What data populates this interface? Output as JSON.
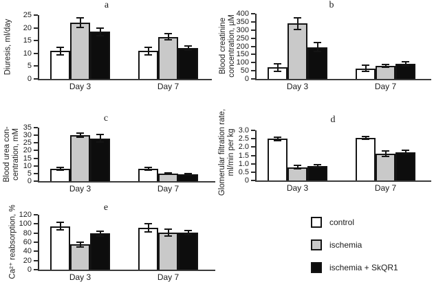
{
  "figure": {
    "ink_color": "#1a1a1a",
    "legend": {
      "items": [
        {
          "name": "control",
          "label": "control",
          "color": "#ffffff"
        },
        {
          "name": "ischemia",
          "label": "ischemia",
          "color": "#c9c9c9"
        },
        {
          "name": "ischemia-skqr1",
          "label": "ischemia + SkQR1",
          "color": "#0d0d0d"
        }
      ]
    }
  },
  "chart_data": [
    {
      "id": "a",
      "type": "bar",
      "title": "a",
      "ylabel": "Diuresis, ml/day",
      "categories": [
        "Day 3",
        "Day 7"
      ],
      "ylim": [
        0,
        25
      ],
      "ytick_labels": [
        "0",
        "5",
        "10",
        "15",
        "20",
        "25"
      ],
      "grid": false,
      "series": [
        {
          "name": "control",
          "color": "#ffffff",
          "values": [
            11,
            11
          ],
          "errors": [
            1.5,
            1.5
          ]
        },
        {
          "name": "ischemia",
          "color": "#c9c9c9",
          "values": [
            22,
            16.5
          ],
          "errors": [
            1.8,
            1.3
          ]
        },
        {
          "name": "ischemia + SkQR1",
          "color": "#0d0d0d",
          "values": [
            18.5,
            12
          ],
          "errors": [
            1.5,
            0.8
          ]
        }
      ]
    },
    {
      "id": "b",
      "type": "bar",
      "title": "b",
      "ylabel": "Blood creatinine\nconcentration, µM",
      "categories": [
        "Day 3",
        "Day 7"
      ],
      "ylim": [
        0,
        400
      ],
      "ytick_labels": [
        "0",
        "50",
        "100",
        "150",
        "200",
        "250",
        "300",
        "350",
        "400"
      ],
      "grid": false,
      "series": [
        {
          "name": "control",
          "color": "#ffffff",
          "values": [
            70,
            65
          ],
          "errors": [
            22,
            20
          ]
        },
        {
          "name": "ischemia",
          "color": "#c9c9c9",
          "values": [
            340,
            80
          ],
          "errors": [
            35,
            10
          ]
        },
        {
          "name": "ischemia + SkQR1",
          "color": "#0d0d0d",
          "values": [
            195,
            92
          ],
          "errors": [
            28,
            12
          ]
        }
      ]
    },
    {
      "id": "c",
      "type": "bar",
      "title": "c",
      "ylabel": "Blood urea con-\ncentration, mM",
      "categories": [
        "Day 3",
        "Day 7"
      ],
      "ylim": [
        0,
        35
      ],
      "ytick_labels": [
        "0",
        "5",
        "10",
        "15",
        "20",
        "25",
        "30",
        "35"
      ],
      "grid": false,
      "series": [
        {
          "name": "control",
          "color": "#ffffff",
          "values": [
            8,
            8
          ],
          "errors": [
            1,
            1
          ]
        },
        {
          "name": "ischemia",
          "color": "#c9c9c9",
          "values": [
            30,
            5
          ],
          "errors": [
            1.5,
            0.5
          ]
        },
        {
          "name": "ischemia + SkQR1",
          "color": "#0d0d0d",
          "values": [
            28,
            4.5
          ],
          "errors": [
            2.5,
            0.5
          ]
        }
      ]
    },
    {
      "id": "d",
      "type": "bar",
      "title": "d",
      "ylabel": "Glomerular filtration rate,\nml/min per kg",
      "categories": [
        "Day 3",
        "Day 7"
      ],
      "ylim": [
        0,
        3
      ],
      "ytick_labels": [
        "0",
        "0.5",
        "1.0",
        "1.5",
        "2.0",
        "2.5",
        "3.0"
      ],
      "grid": false,
      "series": [
        {
          "name": "control",
          "color": "#ffffff",
          "values": [
            2.5,
            2.55
          ],
          "errors": [
            0.1,
            0.1
          ]
        },
        {
          "name": "ischemia",
          "color": "#c9c9c9",
          "values": [
            0.8,
            1.6
          ],
          "errors": [
            0.1,
            0.15
          ]
        },
        {
          "name": "ischemia + SkQR1",
          "color": "#0d0d0d",
          "values": [
            0.85,
            1.7
          ],
          "errors": [
            0.08,
            0.1
          ]
        }
      ]
    },
    {
      "id": "e",
      "type": "bar",
      "title": "e",
      "ylabel": "Ca²⁺ reabsorption, %",
      "categories": [
        "Day 3",
        "Day 7"
      ],
      "ylim": [
        0,
        120
      ],
      "ytick_labels": [
        "0",
        "20",
        "40",
        "60",
        "80",
        "100",
        "120"
      ],
      "grid": false,
      "series": [
        {
          "name": "control",
          "color": "#ffffff",
          "values": [
            95,
            92
          ],
          "errors": [
            8,
            9
          ]
        },
        {
          "name": "ischemia",
          "color": "#c9c9c9",
          "values": [
            55,
            81
          ],
          "errors": [
            5,
            8
          ]
        },
        {
          "name": "ischemia + SkQR1",
          "color": "#0d0d0d",
          "values": [
            79,
            81
          ],
          "errors": [
            5,
            5
          ]
        }
      ]
    }
  ]
}
